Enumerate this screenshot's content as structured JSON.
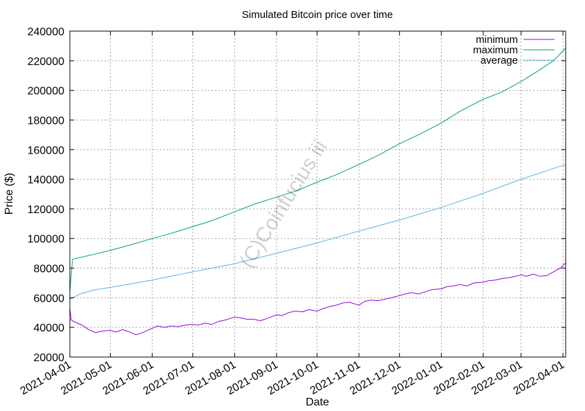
{
  "chart_data": {
    "type": "line",
    "title": "Simulated Bitcoin price over time",
    "xlabel": "Date",
    "ylabel": "Price ($)",
    "watermark": "(C)Coinfucius iii",
    "x_range": [
      "2021-04-01",
      "2022-04-03"
    ],
    "ylim": [
      20000,
      240000
    ],
    "y_ticks": [
      20000,
      40000,
      60000,
      80000,
      100000,
      120000,
      140000,
      160000,
      180000,
      200000,
      220000,
      240000
    ],
    "x_ticks": [
      "2021-04-01",
      "2021-05-01",
      "2021-06-01",
      "2021-07-01",
      "2021-08-01",
      "2021-09-01",
      "2021-10-01",
      "2021-11-01",
      "2021-12-01",
      "2022-01-01",
      "2022-02-01",
      "2022-03-01",
      "2022-04-01"
    ],
    "grid": true,
    "legend_position": "top-right",
    "series": [
      {
        "name": "minimum",
        "color": "#9400d3",
        "points": [
          [
            "2021-04-01",
            53000
          ],
          [
            "2021-04-02",
            45000
          ],
          [
            "2021-04-05",
            43500
          ],
          [
            "2021-04-10",
            41500
          ],
          [
            "2021-04-15",
            38500
          ],
          [
            "2021-04-20",
            36500
          ],
          [
            "2021-04-25",
            37500
          ],
          [
            "2021-05-01",
            38000
          ],
          [
            "2021-05-05",
            36800
          ],
          [
            "2021-05-10",
            38500
          ],
          [
            "2021-05-15",
            37000
          ],
          [
            "2021-05-20",
            35000
          ],
          [
            "2021-05-25",
            36500
          ],
          [
            "2021-06-01",
            39500
          ],
          [
            "2021-06-05",
            41000
          ],
          [
            "2021-06-10",
            40000
          ],
          [
            "2021-06-15",
            41000
          ],
          [
            "2021-06-20",
            40500
          ],
          [
            "2021-06-25",
            41500
          ],
          [
            "2021-07-01",
            42000
          ],
          [
            "2021-07-05",
            41500
          ],
          [
            "2021-07-10",
            43000
          ],
          [
            "2021-07-15",
            42000
          ],
          [
            "2021-07-20",
            44000
          ],
          [
            "2021-07-25",
            45000
          ],
          [
            "2021-08-01",
            47000
          ],
          [
            "2021-08-05",
            46500
          ],
          [
            "2021-08-10",
            45500
          ],
          [
            "2021-08-15",
            45500
          ],
          [
            "2021-08-20",
            44500
          ],
          [
            "2021-08-25",
            46000
          ],
          [
            "2021-09-01",
            48500
          ],
          [
            "2021-09-05",
            48000
          ],
          [
            "2021-09-10",
            50000
          ],
          [
            "2021-09-15",
            51000
          ],
          [
            "2021-09-20",
            50500
          ],
          [
            "2021-09-25",
            52000
          ],
          [
            "2021-10-01",
            51000
          ],
          [
            "2021-10-05",
            52500
          ],
          [
            "2021-10-10",
            54000
          ],
          [
            "2021-10-15",
            55000
          ],
          [
            "2021-10-20",
            56500
          ],
          [
            "2021-10-25",
            57000
          ],
          [
            "2021-11-01",
            55000
          ],
          [
            "2021-11-05",
            57500
          ],
          [
            "2021-11-10",
            58500
          ],
          [
            "2021-11-15",
            58000
          ],
          [
            "2021-11-20",
            59000
          ],
          [
            "2021-11-25",
            60000
          ],
          [
            "2021-12-01",
            61500
          ],
          [
            "2021-12-05",
            62500
          ],
          [
            "2021-12-10",
            63500
          ],
          [
            "2021-12-15",
            62500
          ],
          [
            "2021-12-20",
            64000
          ],
          [
            "2021-12-25",
            65500
          ],
          [
            "2022-01-01",
            66000
          ],
          [
            "2022-01-05",
            67500
          ],
          [
            "2022-01-10",
            68000
          ],
          [
            "2022-01-15",
            69000
          ],
          [
            "2022-01-20",
            68000
          ],
          [
            "2022-01-25",
            70000
          ],
          [
            "2022-02-01",
            70500
          ],
          [
            "2022-02-05",
            71500
          ],
          [
            "2022-02-10",
            72000
          ],
          [
            "2022-02-15",
            73000
          ],
          [
            "2022-02-20",
            73500
          ],
          [
            "2022-02-25",
            74500
          ],
          [
            "2022-03-01",
            75500
          ],
          [
            "2022-03-05",
            74500
          ],
          [
            "2022-03-10",
            76000
          ],
          [
            "2022-03-15",
            74500
          ],
          [
            "2022-03-20",
            75000
          ],
          [
            "2022-03-25",
            77500
          ],
          [
            "2022-03-30",
            80000
          ],
          [
            "2022-04-03",
            83500
          ]
        ]
      },
      {
        "name": "maximum",
        "color": "#009e73",
        "points": [
          [
            "2021-04-01",
            64000
          ],
          [
            "2021-04-03",
            86000
          ],
          [
            "2021-04-15",
            88500
          ],
          [
            "2021-05-01",
            92000
          ],
          [
            "2021-05-15",
            95500
          ],
          [
            "2021-06-01",
            100000
          ],
          [
            "2021-06-15",
            103500
          ],
          [
            "2021-07-01",
            108000
          ],
          [
            "2021-07-15",
            112000
          ],
          [
            "2021-08-01",
            118000
          ],
          [
            "2021-08-15",
            123000
          ],
          [
            "2021-09-01",
            128000
          ],
          [
            "2021-09-15",
            132000
          ],
          [
            "2021-10-01",
            138000
          ],
          [
            "2021-10-15",
            143000
          ],
          [
            "2021-11-01",
            150000
          ],
          [
            "2021-11-15",
            156000
          ],
          [
            "2021-12-01",
            164000
          ],
          [
            "2021-12-15",
            170000
          ],
          [
            "2022-01-01",
            178000
          ],
          [
            "2022-01-15",
            186000
          ],
          [
            "2022-02-01",
            194000
          ],
          [
            "2022-02-15",
            199000
          ],
          [
            "2022-03-01",
            206000
          ],
          [
            "2022-03-15",
            214000
          ],
          [
            "2022-03-25",
            220000
          ],
          [
            "2022-04-03",
            228500
          ]
        ]
      },
      {
        "name": "average",
        "color": "#56b4e9",
        "points": [
          [
            "2021-04-01",
            59000
          ],
          [
            "2021-04-05",
            61000
          ],
          [
            "2021-04-10",
            63000
          ],
          [
            "2021-04-20",
            65500
          ],
          [
            "2021-05-01",
            67000
          ],
          [
            "2021-06-01",
            72000
          ],
          [
            "2021-07-01",
            77500
          ],
          [
            "2021-08-01",
            83000
          ],
          [
            "2021-09-01",
            90000
          ],
          [
            "2021-10-01",
            97000
          ],
          [
            "2021-11-01",
            105000
          ],
          [
            "2021-12-01",
            112500
          ],
          [
            "2022-01-01",
            121000
          ],
          [
            "2022-02-01",
            130500
          ],
          [
            "2022-03-01",
            140000
          ],
          [
            "2022-04-03",
            150000
          ]
        ]
      }
    ]
  }
}
